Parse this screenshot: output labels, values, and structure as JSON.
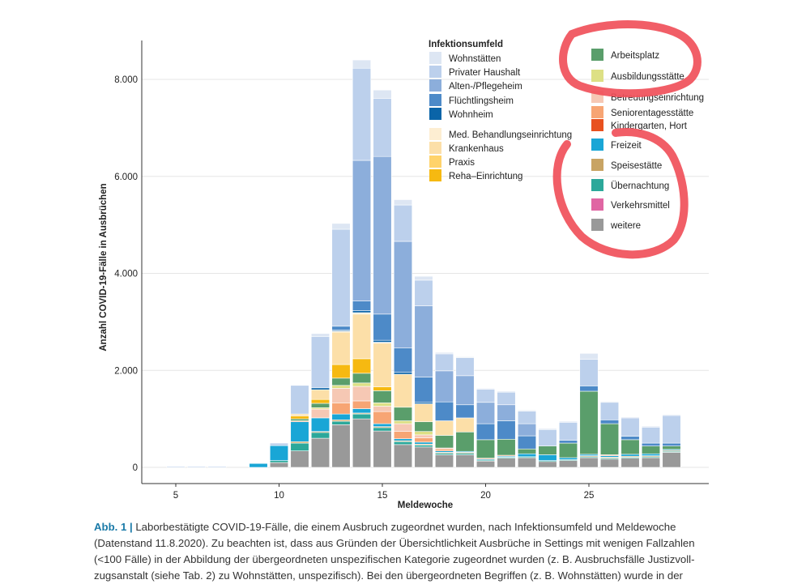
{
  "chart_data": {
    "type": "bar",
    "stacked": true,
    "xlabel": "Meldewoche",
    "ylabel": "Anzahl COVID-19-Fälle in Ausbrüchen",
    "xlim": [
      3,
      30
    ],
    "ylim": [
      0,
      8800
    ],
    "x_ticks": [
      5,
      10,
      15,
      20,
      25
    ],
    "x_tick_labels": [
      "5",
      "10",
      "15",
      "20",
      "25"
    ],
    "y_ticks": [
      0,
      2000,
      4000,
      6000,
      8000
    ],
    "y_tick_labels": [
      "0",
      "2.000",
      "4.000",
      "6.000",
      "8.000"
    ],
    "grid": true,
    "legend_title": "Infektionsumfeld",
    "legend_position": "top-right",
    "x": [
      5,
      6,
      7,
      8,
      9,
      10,
      11,
      12,
      13,
      14,
      15,
      16,
      17,
      18,
      19,
      20,
      21,
      22,
      23,
      24,
      25,
      26,
      27,
      28,
      29
    ],
    "series": [
      {
        "name": "weitere",
        "color": "#999999",
        "values": [
          0,
          0,
          0,
          0,
          0,
          100,
          340,
          600,
          880,
          1000,
          750,
          470,
          420,
          260,
          260,
          130,
          190,
          200,
          120,
          140,
          200,
          170,
          190,
          200,
          310
        ]
      },
      {
        "name": "Verkehrsmittel",
        "color": "#e066a3",
        "values": [
          0,
          0,
          0,
          0,
          0,
          0,
          0,
          0,
          0,
          0,
          0,
          0,
          0,
          0,
          0,
          0,
          0,
          0,
          0,
          0,
          0,
          0,
          0,
          0,
          0
        ]
      },
      {
        "name": "Übernachtung",
        "color": "#2ca89a",
        "values": [
          0,
          0,
          0,
          0,
          0,
          40,
          160,
          120,
          70,
          100,
          70,
          60,
          40,
          30,
          30,
          20,
          20,
          20,
          20,
          20,
          20,
          20,
          20,
          20,
          20
        ]
      },
      {
        "name": "Speisestätte",
        "color": "#c8a464",
        "values": [
          0,
          0,
          0,
          0,
          0,
          0,
          30,
          20,
          30,
          20,
          20,
          20,
          20,
          20,
          20,
          0,
          0,
          0,
          0,
          0,
          20,
          20,
          20,
          20,
          20
        ]
      },
      {
        "name": "Freizeit",
        "color": "#19a6d6",
        "values": [
          0,
          0,
          0,
          0,
          80,
          310,
          410,
          280,
          120,
          90,
          60,
          40,
          40,
          30,
          20,
          20,
          20,
          60,
          120,
          40,
          30,
          30,
          40,
          40,
          20
        ]
      },
      {
        "name": "Kindergarten, Hort",
        "color": "#e8511f",
        "values": [
          0,
          0,
          0,
          0,
          0,
          0,
          0,
          0,
          0,
          0,
          0,
          0,
          0,
          0,
          0,
          0,
          0,
          0,
          0,
          0,
          0,
          0,
          0,
          0,
          0
        ]
      },
      {
        "name": "Seniorentagesstätte",
        "color": "#f7a574",
        "values": [
          0,
          0,
          0,
          0,
          0,
          0,
          20,
          0,
          230,
          160,
          250,
          150,
          90,
          40,
          0,
          20,
          20,
          0,
          0,
          0,
          0,
          20,
          0,
          0,
          0
        ]
      },
      {
        "name": "Betreuungseinrichtung",
        "color": "#f6c8b4",
        "values": [
          0,
          0,
          0,
          0,
          0,
          0,
          0,
          180,
          300,
          300,
          110,
          160,
          60,
          20,
          0,
          0,
          0,
          0,
          0,
          0,
          0,
          0,
          0,
          0,
          0
        ]
      },
      {
        "name": "Ausbildungsstätte",
        "color": "#dde085",
        "values": [
          0,
          0,
          0,
          0,
          0,
          0,
          0,
          30,
          60,
          70,
          70,
          60,
          70,
          0,
          0,
          0,
          0,
          0,
          0,
          0,
          0,
          0,
          0,
          0,
          0
        ]
      },
      {
        "name": "Arbeitsplatz",
        "color": "#5a9e6b",
        "values": [
          0,
          0,
          0,
          0,
          0,
          0,
          40,
          90,
          150,
          200,
          250,
          280,
          200,
          260,
          400,
          380,
          330,
          100,
          180,
          300,
          1300,
          640,
          300,
          160,
          70
        ]
      },
      {
        "name": "Reha-Einrichtung",
        "color": "#f6b911",
        "values": [
          0,
          0,
          0,
          0,
          0,
          0,
          60,
          80,
          280,
          300,
          80,
          0,
          0,
          0,
          0,
          0,
          0,
          0,
          0,
          0,
          0,
          0,
          0,
          0,
          0
        ]
      },
      {
        "name": "Praxis",
        "color": "#ffd36b",
        "values": [
          0,
          0,
          0,
          0,
          0,
          0,
          0,
          0,
          0,
          0,
          0,
          0,
          0,
          0,
          0,
          0,
          0,
          0,
          0,
          0,
          0,
          0,
          0,
          0,
          0
        ]
      },
      {
        "name": "Krankenhaus",
        "color": "#fcdfa8",
        "values": [
          0,
          0,
          0,
          0,
          0,
          0,
          40,
          200,
          670,
          920,
          900,
          680,
          370,
          300,
          290,
          0,
          0,
          0,
          0,
          0,
          0,
          0,
          0,
          0,
          0
        ]
      },
      {
        "name": "Med. Behandlungseinrichtung",
        "color": "#fdeed2",
        "values": [
          0,
          0,
          0,
          0,
          0,
          0,
          0,
          0,
          20,
          30,
          20,
          0,
          0,
          0,
          0,
          0,
          0,
          0,
          0,
          0,
          0,
          0,
          0,
          0,
          0
        ]
      },
      {
        "name": "Wohnheim",
        "color": "#0a64a8",
        "values": [
          0,
          0,
          0,
          0,
          0,
          0,
          0,
          40,
          20,
          40,
          40,
          40,
          30,
          0,
          0,
          0,
          0,
          0,
          0,
          0,
          0,
          0,
          0,
          0,
          0
        ]
      },
      {
        "name": "Flüchtlingsheim",
        "color": "#4d8ac8",
        "values": [
          0,
          0,
          0,
          0,
          0,
          0,
          0,
          0,
          80,
          200,
          540,
          500,
          520,
          390,
          270,
          330,
          380,
          270,
          0,
          60,
          110,
          80,
          70,
          60,
          60
        ]
      },
      {
        "name": "Alten-/Pflegeheim",
        "color": "#8caedb",
        "values": [
          0,
          0,
          0,
          0,
          0,
          0,
          0,
          0,
          0,
          2900,
          3250,
          2200,
          1470,
          640,
          600,
          440,
          330,
          250,
          0,
          0,
          0,
          0,
          0,
          0,
          0
        ]
      },
      {
        "name": "Privater Haushalt",
        "color": "#bcd0ec",
        "values": [
          20,
          20,
          20,
          0,
          0,
          50,
          590,
          1060,
          2000,
          1900,
          1200,
          750,
          530,
          350,
          370,
          270,
          260,
          260,
          340,
          370,
          550,
          360,
          380,
          330,
          570
        ]
      },
      {
        "name": "Wohnstätten",
        "color": "#dde6f3",
        "values": [
          0,
          0,
          0,
          0,
          0,
          0,
          0,
          60,
          120,
          170,
          170,
          110,
          80,
          30,
          20,
          20,
          20,
          20,
          20,
          20,
          120,
          20,
          20,
          20,
          20
        ]
      }
    ],
    "legend_left": [
      "Wohnstätten",
      "Privater Haushalt",
      "Alten-/Pflegeheim",
      "Flüchtlingsheim",
      "Wohnheim",
      "Med. Behandlungseinrichtung",
      "Krankenhaus",
      "Praxis",
      "Reha–Einrichtung"
    ],
    "legend_right": [
      "Arbeitsplatz",
      "Ausbildungsstätte",
      "Betreuungseinrichtung",
      "Seniorentagesstätte",
      "Kindergarten, Hort",
      "Freizeit",
      "Speisestätte",
      "Übernachtung",
      "Verkehrsmittel",
      "weitere"
    ],
    "legend_left_colors": [
      "#dde6f3",
      "#bcd0ec",
      "#8caedb",
      "#4d8ac8",
      "#0a64a8",
      "#fdeed2",
      "#fcdfa8",
      "#ffd36b",
      "#f6b911"
    ],
    "legend_right_colors": [
      "#5a9e6b",
      "#dde085",
      "#f6c8b4",
      "#f7a574",
      "#e8511f",
      "#19a6d6",
      "#c8a464",
      "#2ca89a",
      "#e066a3",
      "#999999"
    ]
  },
  "caption": {
    "label": "Abb. 1 |",
    "text": " Laborbestätigte COVID-19-Fälle, die einem Ausbruch zugeordnet wurden, nach Infektionsumfeld und Meldewoche (Datenstand 11.8.2020). Zu beachten ist, dass aus Gründen der Übersichtlichkeit Ausbrüche in Settings mit wenigen Fallzahlen (<100 Fälle) in der Abbildung der übergeordneten unspezifischen Kategorie zugeordnet wurden (z. B. Ausbruchsfälle Justizvoll­zugsanstalt (siehe Tab. 2) zu Wohnstätten, unspezifisch). Bei den übergeordneten Begriffen (z. B. Wohnstätten) wurde in der"
  },
  "annotation_color": "#f0505a"
}
